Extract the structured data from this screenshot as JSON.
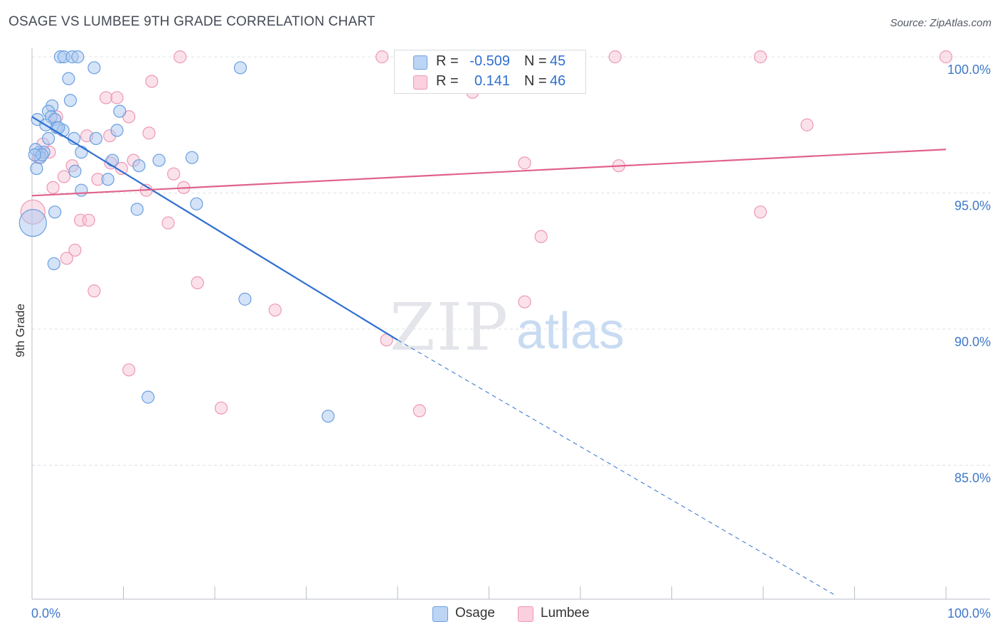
{
  "header": {
    "title": "OSAGE VS LUMBEE 9TH GRADE CORRELATION CHART",
    "source": "Source: ZipAtlas.com"
  },
  "watermark": {
    "zip": "ZIP",
    "atlas": "atlas"
  },
  "legend_top": {
    "rows": [
      {
        "label": "R =",
        "r": "-0.509",
        "n_label": "N =",
        "n": "45"
      },
      {
        "label": "R =",
        "r": "0.141",
        "n_label": "N =",
        "n": "46"
      }
    ]
  },
  "legend_bottom": {
    "items": [
      "Osage",
      "Lumbee"
    ]
  },
  "colors": {
    "osage_fill": "#a9c8f0",
    "osage_stroke": "#6a9fe0",
    "osage_line": "#2f6fd0",
    "lumbee_fill": "#f7bfd0",
    "lumbee_stroke": "#ee97b4",
    "lumbee_line": "#e0628c",
    "axis_text": "#3f78c9",
    "grid": "#dde0e6"
  },
  "chart_data": {
    "type": "scatter",
    "title": "OSAGE VS LUMBEE 9TH GRADE CORRELATION CHART",
    "xlabel": "",
    "ylabel": "9th Grade",
    "xlim": [
      0,
      100
    ],
    "ylim": [
      80.2,
      100.3
    ],
    "x_tick_labels": [
      "0.0%",
      "100.0%"
    ],
    "y_ticks": [
      85,
      90,
      95,
      100
    ],
    "y_tick_labels": [
      "85.0%",
      "90.0%",
      "95.0%",
      "100.0%"
    ],
    "grid": true,
    "legend_position": "top-center",
    "series": [
      {
        "name": "Osage",
        "r": -0.509,
        "n": 45,
        "points": [
          [
            3.1,
            100.0
          ],
          [
            3.5,
            100.0
          ],
          [
            4.4,
            100.0
          ],
          [
            5.0,
            100.0
          ],
          [
            6.8,
            99.6
          ],
          [
            22.8,
            99.6
          ],
          [
            4.0,
            99.2
          ],
          [
            4.2,
            98.4
          ],
          [
            2.2,
            98.2
          ],
          [
            1.8,
            98.0
          ],
          [
            9.6,
            98.0
          ],
          [
            2.1,
            97.8
          ],
          [
            0.6,
            97.7
          ],
          [
            2.5,
            97.7
          ],
          [
            1.5,
            97.5
          ],
          [
            2.7,
            97.4
          ],
          [
            3.4,
            97.3
          ],
          [
            9.3,
            97.3
          ],
          [
            1.8,
            97.0
          ],
          [
            4.6,
            97.0
          ],
          [
            7.0,
            97.0
          ],
          [
            0.8,
            96.5
          ],
          [
            1.3,
            96.5
          ],
          [
            5.4,
            96.5
          ],
          [
            0.9,
            96.3
          ],
          [
            17.5,
            96.3
          ],
          [
            8.8,
            96.2
          ],
          [
            13.9,
            96.2
          ],
          [
            11.7,
            96.0
          ],
          [
            0.5,
            95.9
          ],
          [
            4.7,
            95.8
          ],
          [
            8.3,
            95.5
          ],
          [
            5.4,
            95.1
          ],
          [
            18.0,
            94.6
          ],
          [
            2.5,
            94.3
          ],
          [
            11.5,
            94.4
          ],
          [
            0.1,
            93.9
          ],
          [
            2.4,
            92.4
          ],
          [
            23.3,
            91.1
          ],
          [
            12.7,
            87.5
          ],
          [
            32.4,
            86.8
          ],
          [
            0.4,
            96.6
          ],
          [
            2.9,
            97.4
          ],
          [
            1.1,
            96.4
          ],
          [
            0.3,
            96.4
          ]
        ],
        "trend": {
          "x0": 0,
          "y0": 97.8,
          "x1": 40,
          "y1": 89.6,
          "dashed_to_x": 88,
          "dashed_to_y": 80.2
        }
      },
      {
        "name": "Lumbee",
        "r": 0.141,
        "n": 46,
        "points": [
          [
            16.2,
            100.0
          ],
          [
            38.3,
            100.0
          ],
          [
            63.8,
            100.0
          ],
          [
            79.7,
            100.0
          ],
          [
            100.0,
            100.0
          ],
          [
            13.1,
            99.1
          ],
          [
            48.2,
            98.7
          ],
          [
            8.1,
            98.5
          ],
          [
            9.3,
            98.5
          ],
          [
            10.6,
            97.8
          ],
          [
            2.7,
            97.8
          ],
          [
            84.8,
            97.5
          ],
          [
            12.8,
            97.2
          ],
          [
            6.0,
            97.1
          ],
          [
            8.5,
            97.1
          ],
          [
            1.2,
            96.8
          ],
          [
            1.9,
            96.5
          ],
          [
            0.7,
            96.3
          ],
          [
            11.1,
            96.2
          ],
          [
            8.6,
            96.1
          ],
          [
            53.9,
            96.1
          ],
          [
            64.2,
            96.0
          ],
          [
            4.4,
            96.0
          ],
          [
            9.8,
            95.9
          ],
          [
            15.5,
            95.7
          ],
          [
            3.5,
            95.6
          ],
          [
            7.2,
            95.5
          ],
          [
            16.6,
            95.2
          ],
          [
            2.3,
            95.2
          ],
          [
            12.5,
            95.1
          ],
          [
            79.7,
            94.3
          ],
          [
            5.3,
            94.0
          ],
          [
            6.2,
            94.0
          ],
          [
            14.9,
            93.9
          ],
          [
            55.7,
            93.4
          ],
          [
            4.7,
            92.9
          ],
          [
            3.8,
            92.6
          ],
          [
            18.1,
            91.7
          ],
          [
            6.8,
            91.4
          ],
          [
            53.9,
            91.0
          ],
          [
            26.6,
            90.7
          ],
          [
            38.8,
            89.6
          ],
          [
            10.6,
            88.5
          ],
          [
            20.7,
            87.1
          ],
          [
            42.4,
            87.0
          ],
          [
            0.1,
            94.3
          ]
        ],
        "trend": {
          "x0": 0,
          "y0": 94.9,
          "x1": 100,
          "y1": 96.6
        }
      }
    ]
  }
}
